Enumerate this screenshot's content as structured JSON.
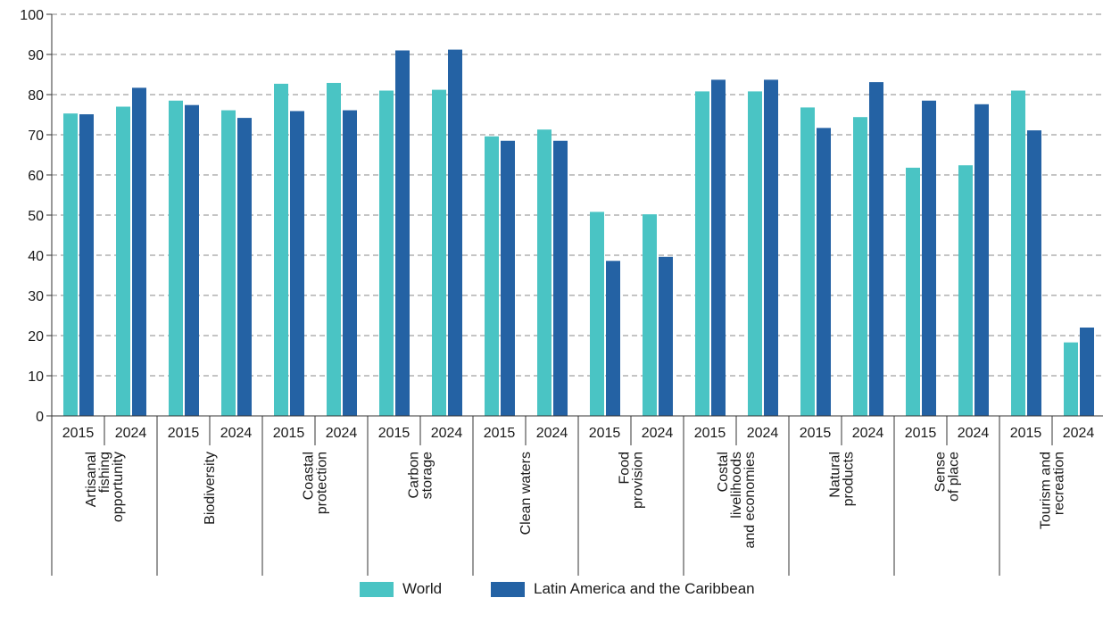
{
  "chart_data": {
    "type": "bar",
    "title": "",
    "xlabel": "",
    "ylabel": "",
    "ylim": [
      0,
      100
    ],
    "yticks": [
      0,
      10,
      20,
      30,
      40,
      50,
      60,
      70,
      80,
      90,
      100
    ],
    "grid": true,
    "legend_position": "bottom",
    "colors": {
      "World": "#4ac4c4",
      "Latin America and the Caribbean": "#2462a4"
    },
    "groups": [
      {
        "label_lines": [
          "Artisanal",
          "fishing",
          "opportunity"
        ],
        "years": [
          "2015",
          "2024"
        ],
        "World": [
          75.3,
          77.0
        ],
        "Latin America and the Caribbean": [
          75.1,
          81.7
        ]
      },
      {
        "label_lines": [
          "Biodiversity"
        ],
        "years": [
          "2015",
          "2024"
        ],
        "World": [
          78.5,
          76.1
        ],
        "Latin America and the Caribbean": [
          77.4,
          74.2
        ]
      },
      {
        "label_lines": [
          "Coastal",
          "protection"
        ],
        "years": [
          "2015",
          "2024"
        ],
        "World": [
          82.7,
          82.9
        ],
        "Latin America and the Caribbean": [
          75.9,
          76.1
        ]
      },
      {
        "label_lines": [
          "Carbon",
          "storage"
        ],
        "years": [
          "2015",
          "2024"
        ],
        "World": [
          81.0,
          81.2
        ],
        "Latin America and the Caribbean": [
          91.0,
          91.2
        ]
      },
      {
        "label_lines": [
          "Clean waters"
        ],
        "years": [
          "2015",
          "2024"
        ],
        "World": [
          69.6,
          71.3
        ],
        "Latin America and the Caribbean": [
          68.5,
          68.5
        ]
      },
      {
        "label_lines": [
          "Food",
          "provision"
        ],
        "years": [
          "2015",
          "2024"
        ],
        "World": [
          50.8,
          50.2
        ],
        "Latin America and the Caribbean": [
          38.6,
          39.6
        ]
      },
      {
        "label_lines": [
          "Costal",
          "livelihoods",
          "and economies"
        ],
        "years": [
          "2015",
          "2024"
        ],
        "World": [
          80.8,
          80.8
        ],
        "Latin America and the Caribbean": [
          83.7,
          83.7
        ]
      },
      {
        "label_lines": [
          "Natural",
          "products"
        ],
        "years": [
          "2015",
          "2024"
        ],
        "World": [
          76.8,
          74.4
        ],
        "Latin America and the Caribbean": [
          71.7,
          83.1
        ]
      },
      {
        "label_lines": [
          "Sense",
          "of place"
        ],
        "years": [
          "2015",
          "2024"
        ],
        "World": [
          61.8,
          62.4
        ],
        "Latin America and the Caribbean": [
          78.5,
          77.6
        ]
      },
      {
        "label_lines": [
          "Tourism and",
          "recreation"
        ],
        "years": [
          "2015",
          "2024"
        ],
        "World": [
          81.0,
          18.3
        ],
        "Latin America and the Caribbean": [
          71.1,
          22.0
        ]
      }
    ]
  },
  "legend": {
    "items": [
      {
        "name": "World",
        "color": "#4ac4c4"
      },
      {
        "name": "Latin America and the Caribbean",
        "color": "#2462a4"
      }
    ]
  }
}
